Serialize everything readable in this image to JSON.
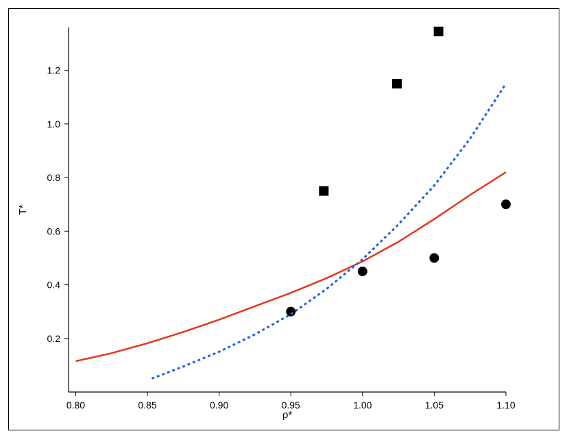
{
  "chart_data": {
    "type": "scatter",
    "title": "",
    "xlabel": "ρ*",
    "ylabel": "T*",
    "xlim": [
      0.795,
      1.1
    ],
    "ylim": [
      0.0,
      1.36
    ],
    "x_ticks": [
      0.8,
      0.85,
      0.9,
      0.95,
      1.0,
      1.05,
      1.1
    ],
    "x_tick_labels": [
      "0.80",
      "0.85",
      "0.90",
      "0.95",
      "1.00",
      "1.05",
      "1.10"
    ],
    "y_ticks": [
      0.2,
      0.4,
      0.6,
      0.8,
      1.0,
      1.2
    ],
    "y_tick_labels": [
      "0.2",
      "0.4",
      "0.6",
      "0.8",
      "1.0",
      "1.2"
    ],
    "grid": false,
    "legend": "none",
    "series": [
      {
        "kind": "scatter",
        "marker": "square",
        "color": "#000000",
        "points": [
          [
            0.973,
            0.75
          ],
          [
            1.024,
            1.15
          ],
          [
            1.053,
            1.345
          ]
        ]
      },
      {
        "kind": "scatter",
        "marker": "circle",
        "color": "#000000",
        "points": [
          [
            0.95,
            0.3
          ],
          [
            1.0,
            0.45
          ],
          [
            1.05,
            0.5
          ],
          [
            1.1,
            0.7
          ]
        ]
      },
      {
        "kind": "line",
        "style": "solid",
        "color": "#e8341c",
        "points": [
          [
            0.8,
            0.115
          ],
          [
            0.825,
            0.145
          ],
          [
            0.85,
            0.182
          ],
          [
            0.875,
            0.224
          ],
          [
            0.9,
            0.27
          ],
          [
            0.925,
            0.32
          ],
          [
            0.95,
            0.37
          ],
          [
            0.975,
            0.425
          ],
          [
            1.0,
            0.487
          ],
          [
            1.025,
            0.56
          ],
          [
            1.05,
            0.645
          ],
          [
            1.075,
            0.735
          ],
          [
            1.1,
            0.82
          ]
        ]
      },
      {
        "kind": "line",
        "style": "dotted",
        "color": "#1c62e6",
        "points": [
          [
            0.853,
            0.05
          ],
          [
            0.875,
            0.095
          ],
          [
            0.9,
            0.15
          ],
          [
            0.925,
            0.215
          ],
          [
            0.95,
            0.29
          ],
          [
            0.975,
            0.385
          ],
          [
            1.0,
            0.495
          ],
          [
            1.025,
            0.625
          ],
          [
            1.05,
            0.77
          ],
          [
            1.075,
            0.945
          ],
          [
            1.1,
            1.15
          ]
        ]
      }
    ]
  }
}
